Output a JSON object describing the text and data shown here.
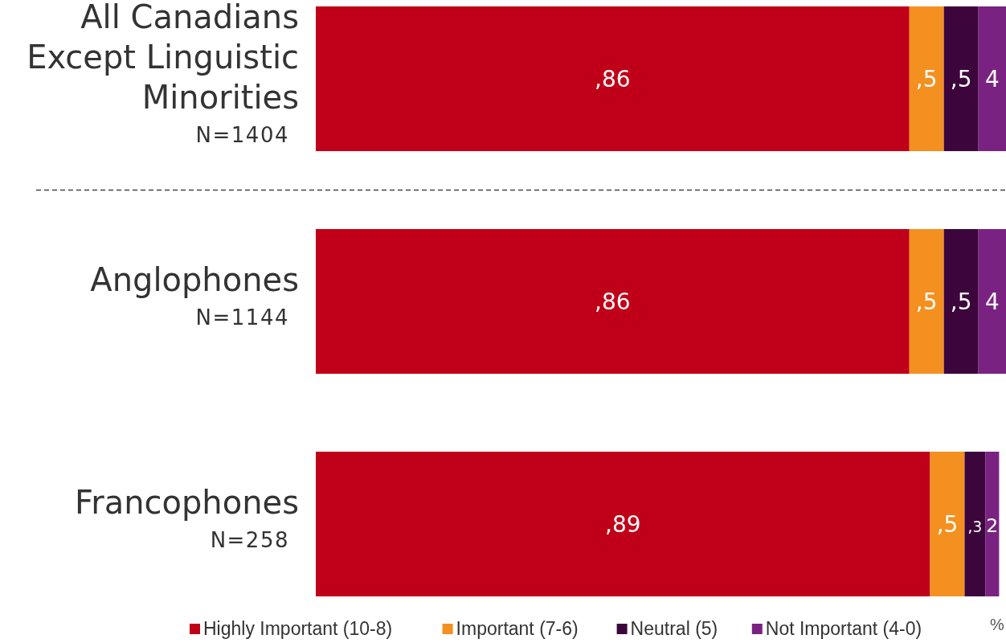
{
  "chart_data": {
    "type": "bar",
    "orientation": "horizontal",
    "stacked": true,
    "categories": [
      "All Canadians\nExcept Linguistic\nMinorities\nN=1404",
      "Anglophones\nN=1144",
      "Francophones\nN=258"
    ],
    "series": [
      {
        "name": "Highly Important (10-8)",
        "color": "#c00018",
        "values": [
          86,
          86,
          89
        ],
        "value_labels": [
          ",86",
          ",86",
          ",89"
        ]
      },
      {
        "name": "Important (7-6)",
        "color": "#f39020",
        "values": [
          5,
          5,
          5
        ],
        "value_labels": [
          ",5",
          ",5",
          ",5"
        ]
      },
      {
        "name": "Neutral (5)",
        "color": "#3c053c",
        "values": [
          5,
          5,
          3
        ],
        "value_labels": [
          ",5",
          ",5",
          ",3"
        ]
      },
      {
        "name": "Not Important (4-0)",
        "color": "#7a2282",
        "values": [
          4,
          4,
          2
        ],
        "value_labels": [
          "4",
          "4",
          "2"
        ]
      }
    ],
    "legend": "bottom",
    "annotations": [
      "%"
    ]
  }
}
